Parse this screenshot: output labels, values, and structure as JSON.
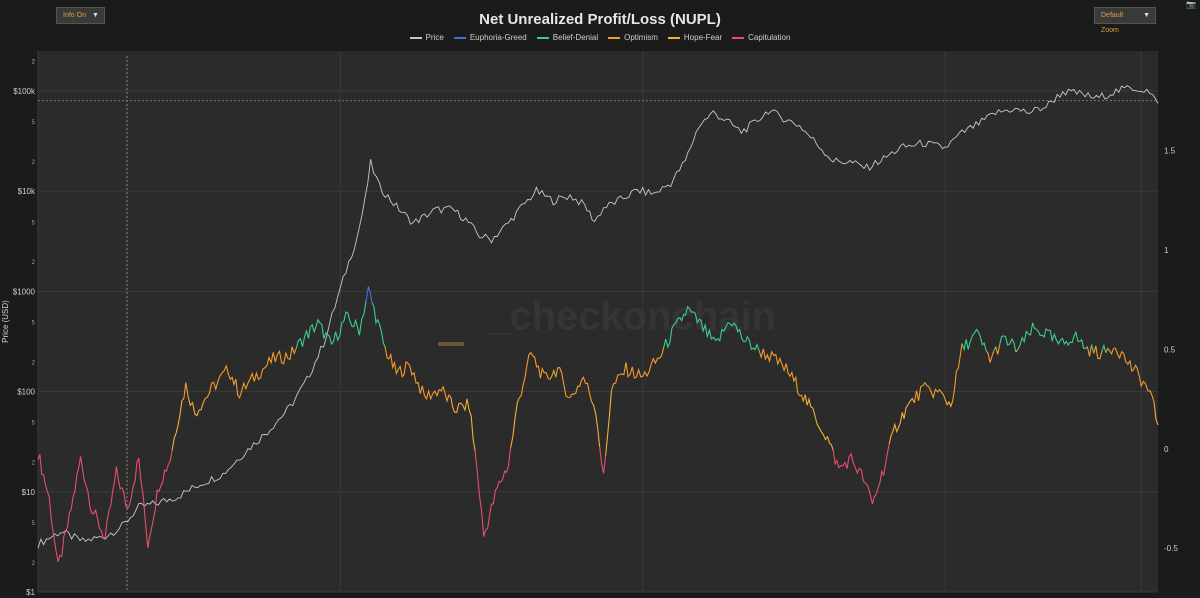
{
  "controls": {
    "info_label": "Info On",
    "zoom_label": "Default Zoom"
  },
  "chart_data": {
    "type": "line",
    "title": "Net Unrealized Profit/Loss (NUPL)",
    "watermark": "_checkonchain",
    "ylabel": "Price (USD)",
    "y_scale": "log",
    "ylim": [
      1,
      250000
    ],
    "y2lim": [
      -0.72,
      2.0
    ],
    "grid": true,
    "legend_position": "top-center",
    "y_ticks_left": [
      "$1",
      "$10",
      "$100",
      "$1000",
      "$10k",
      "$100k"
    ],
    "y_minor_ticks_left": [
      "2",
      "5",
      "2",
      "5",
      "2",
      "5",
      "2",
      "5",
      "2",
      "5",
      "2",
      "5",
      "2"
    ],
    "y_ticks_right": [
      "-0.5",
      "0",
      "0.5",
      "1",
      "1.5"
    ],
    "series": [
      {
        "name": "Price",
        "color": "#c8c8c8"
      },
      {
        "name": "Euphoria-Greed",
        "color": "#3f6fe0"
      },
      {
        "name": "Belief-Denial",
        "color": "#3ccf8c"
      },
      {
        "name": "Optimism",
        "color": "#f39a2a"
      },
      {
        "name": "Hope-Fear",
        "color": "#f2ae35"
      },
      {
        "name": "Capitulation",
        "color": "#e84e6c"
      }
    ],
    "price_points": [
      [
        0.0,
        3
      ],
      [
        0.02,
        4
      ],
      [
        0.04,
        3.2
      ],
      [
        0.06,
        3.6
      ],
      [
        0.075,
        4.5
      ],
      [
        0.09,
        7
      ],
      [
        0.105,
        7.6
      ],
      [
        0.125,
        9
      ],
      [
        0.145,
        12
      ],
      [
        0.165,
        15
      ],
      [
        0.185,
        25
      ],
      [
        0.205,
        40
      ],
      [
        0.225,
        70
      ],
      [
        0.24,
        130
      ],
      [
        0.255,
        300
      ],
      [
        0.265,
        700
      ],
      [
        0.275,
        1600
      ],
      [
        0.285,
        3500
      ],
      [
        0.292,
        8000
      ],
      [
        0.297,
        19000
      ],
      [
        0.305,
        11000
      ],
      [
        0.32,
        7000
      ],
      [
        0.335,
        4800
      ],
      [
        0.355,
        6500
      ],
      [
        0.37,
        6600
      ],
      [
        0.382,
        5200
      ],
      [
        0.394,
        3600
      ],
      [
        0.405,
        3300
      ],
      [
        0.42,
        4800
      ],
      [
        0.432,
        7000
      ],
      [
        0.445,
        10000
      ],
      [
        0.46,
        8000
      ],
      [
        0.475,
        9000
      ],
      [
        0.488,
        7200
      ],
      [
        0.497,
        5000
      ],
      [
        0.505,
        6800
      ],
      [
        0.52,
        8200
      ],
      [
        0.535,
        10200
      ],
      [
        0.55,
        9400
      ],
      [
        0.565,
        12000
      ],
      [
        0.578,
        20000
      ],
      [
        0.59,
        45000
      ],
      [
        0.603,
        61000
      ],
      [
        0.615,
        50000
      ],
      [
        0.628,
        39000
      ],
      [
        0.64,
        48000
      ],
      [
        0.652,
        64000
      ],
      [
        0.663,
        55000
      ],
      [
        0.68,
        45000
      ],
      [
        0.695,
        30000
      ],
      [
        0.71,
        20000
      ],
      [
        0.725,
        19500
      ],
      [
        0.74,
        17000
      ],
      [
        0.755,
        21000
      ],
      [
        0.77,
        27000
      ],
      [
        0.79,
        30000
      ],
      [
        0.81,
        27000
      ],
      [
        0.825,
        38000
      ],
      [
        0.84,
        47000
      ],
      [
        0.855,
        60000
      ],
      [
        0.87,
        66000
      ],
      [
        0.885,
        61000
      ],
      [
        0.9,
        70000
      ],
      [
        0.915,
        98000
      ],
      [
        0.93,
        94000
      ],
      [
        0.945,
        84000
      ],
      [
        0.96,
        97000
      ],
      [
        0.975,
        108000
      ],
      [
        0.99,
        101000
      ],
      [
        1.0,
        75000
      ]
    ],
    "nupl_points": [
      [
        0.0,
        -0.02
      ],
      [
        0.01,
        -0.25
      ],
      [
        0.018,
        -0.6
      ],
      [
        0.028,
        -0.35
      ],
      [
        0.038,
        -0.05
      ],
      [
        0.048,
        -0.3
      ],
      [
        0.06,
        -0.45
      ],
      [
        0.07,
        -0.12
      ],
      [
        0.08,
        -0.3
      ],
      [
        0.09,
        -0.05
      ],
      [
        0.098,
        -0.48
      ],
      [
        0.108,
        -0.18
      ],
      [
        0.118,
        -0.05
      ],
      [
        0.125,
        0.15
      ],
      [
        0.132,
        0.32
      ],
      [
        0.14,
        0.18
      ],
      [
        0.155,
        0.3
      ],
      [
        0.17,
        0.4
      ],
      [
        0.18,
        0.28
      ],
      [
        0.195,
        0.37
      ],
      [
        0.21,
        0.45
      ],
      [
        0.225,
        0.47
      ],
      [
        0.238,
        0.56
      ],
      [
        0.25,
        0.63
      ],
      [
        0.262,
        0.52
      ],
      [
        0.275,
        0.66
      ],
      [
        0.287,
        0.6
      ],
      [
        0.295,
        0.8
      ],
      [
        0.3,
        0.7
      ],
      [
        0.31,
        0.5
      ],
      [
        0.32,
        0.38
      ],
      [
        0.332,
        0.42
      ],
      [
        0.345,
        0.26
      ],
      [
        0.36,
        0.3
      ],
      [
        0.372,
        0.2
      ],
      [
        0.385,
        0.22
      ],
      [
        0.392,
        -0.1
      ],
      [
        0.398,
        -0.44
      ],
      [
        0.41,
        -0.2
      ],
      [
        0.42,
        -0.08
      ],
      [
        0.428,
        0.22
      ],
      [
        0.44,
        0.48
      ],
      [
        0.452,
        0.35
      ],
      [
        0.464,
        0.4
      ],
      [
        0.475,
        0.25
      ],
      [
        0.487,
        0.36
      ],
      [
        0.498,
        0.2
      ],
      [
        0.505,
        -0.15
      ],
      [
        0.512,
        0.3
      ],
      [
        0.525,
        0.4
      ],
      [
        0.54,
        0.36
      ],
      [
        0.555,
        0.46
      ],
      [
        0.566,
        0.58
      ],
      [
        0.58,
        0.7
      ],
      [
        0.592,
        0.62
      ],
      [
        0.605,
        0.52
      ],
      [
        0.618,
        0.65
      ],
      [
        0.63,
        0.55
      ],
      [
        0.642,
        0.5
      ],
      [
        0.655,
        0.46
      ],
      [
        0.668,
        0.4
      ],
      [
        0.68,
        0.3
      ],
      [
        0.69,
        0.2
      ],
      [
        0.705,
        0.05
      ],
      [
        0.715,
        -0.1
      ],
      [
        0.726,
        -0.05
      ],
      [
        0.737,
        -0.15
      ],
      [
        0.745,
        -0.28
      ],
      [
        0.755,
        -0.1
      ],
      [
        0.765,
        0.1
      ],
      [
        0.775,
        0.2
      ],
      [
        0.79,
        0.3
      ],
      [
        0.805,
        0.28
      ],
      [
        0.815,
        0.22
      ],
      [
        0.825,
        0.5
      ],
      [
        0.838,
        0.58
      ],
      [
        0.85,
        0.45
      ],
      [
        0.862,
        0.55
      ],
      [
        0.875,
        0.5
      ],
      [
        0.888,
        0.6
      ],
      [
        0.9,
        0.58
      ],
      [
        0.913,
        0.52
      ],
      [
        0.925,
        0.57
      ],
      [
        0.937,
        0.5
      ],
      [
        0.95,
        0.48
      ],
      [
        0.962,
        0.52
      ],
      [
        0.975,
        0.42
      ],
      [
        0.985,
        0.35
      ],
      [
        0.993,
        0.28
      ],
      [
        1.0,
        0.12
      ]
    ]
  }
}
